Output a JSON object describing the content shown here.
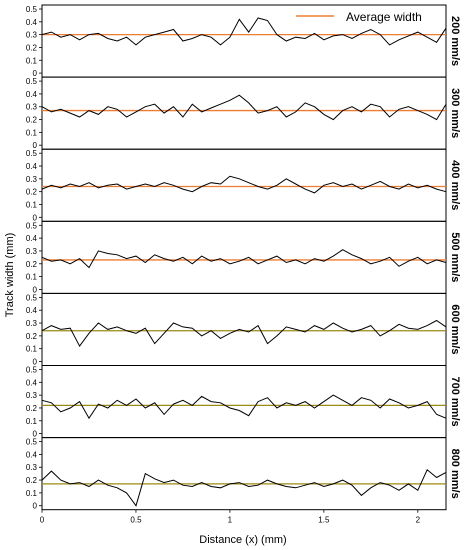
{
  "chart_data": {
    "type": "line",
    "xlabel": "Distance (x) (mm)",
    "ylabel": "Track width (mm)",
    "xlim": [
      0,
      2.15
    ],
    "ylim": [
      0,
      0.5
    ],
    "xticks": [
      "0",
      "0.5",
      "1",
      "1.5",
      "2"
    ],
    "xtick_values": [
      0,
      0.5,
      1,
      1.5,
      2
    ],
    "yticks": [
      "0",
      "0.1",
      "0.2",
      "0.3",
      "0.4",
      "0.5"
    ],
    "ytick_values": [
      0,
      0.1,
      0.2,
      0.3,
      0.4,
      0.5
    ],
    "legend": {
      "label": "Average width",
      "color": "#ed7d31",
      "position": "top-right"
    },
    "line_color": "#000000",
    "panels": [
      {
        "label": "200 mm/s",
        "average": 0.3,
        "average_color": "#ed7d31",
        "x": [
          0,
          0.05,
          0.1,
          0.15,
          0.2,
          0.25,
          0.3,
          0.35,
          0.4,
          0.45,
          0.5,
          0.55,
          0.6,
          0.65,
          0.7,
          0.75,
          0.8,
          0.85,
          0.9,
          0.95,
          1.0,
          1.05,
          1.1,
          1.15,
          1.2,
          1.25,
          1.3,
          1.35,
          1.4,
          1.45,
          1.5,
          1.55,
          1.6,
          1.65,
          1.7,
          1.75,
          1.8,
          1.85,
          1.9,
          1.95,
          2.0,
          2.05,
          2.1,
          2.15
        ],
        "y": [
          0.3,
          0.32,
          0.28,
          0.3,
          0.26,
          0.3,
          0.31,
          0.27,
          0.25,
          0.28,
          0.22,
          0.28,
          0.3,
          0.32,
          0.34,
          0.25,
          0.27,
          0.3,
          0.28,
          0.22,
          0.28,
          0.42,
          0.32,
          0.43,
          0.41,
          0.3,
          0.25,
          0.28,
          0.27,
          0.31,
          0.26,
          0.29,
          0.3,
          0.27,
          0.31,
          0.34,
          0.3,
          0.22,
          0.26,
          0.29,
          0.32,
          0.28,
          0.24,
          0.35
        ]
      },
      {
        "label": "300 mm/s",
        "average": 0.27,
        "average_color": "#ed7d31",
        "x": [
          0,
          0.05,
          0.1,
          0.15,
          0.2,
          0.25,
          0.3,
          0.35,
          0.4,
          0.45,
          0.5,
          0.55,
          0.6,
          0.65,
          0.7,
          0.75,
          0.8,
          0.85,
          0.9,
          0.95,
          1.0,
          1.05,
          1.1,
          1.15,
          1.2,
          1.25,
          1.3,
          1.35,
          1.4,
          1.45,
          1.5,
          1.55,
          1.6,
          1.65,
          1.7,
          1.75,
          1.8,
          1.85,
          1.9,
          1.95,
          2.0,
          2.05,
          2.1,
          2.15
        ],
        "y": [
          0.3,
          0.26,
          0.28,
          0.25,
          0.22,
          0.27,
          0.24,
          0.3,
          0.28,
          0.22,
          0.26,
          0.3,
          0.32,
          0.25,
          0.3,
          0.22,
          0.32,
          0.26,
          0.29,
          0.32,
          0.35,
          0.39,
          0.33,
          0.25,
          0.27,
          0.3,
          0.22,
          0.26,
          0.33,
          0.3,
          0.24,
          0.2,
          0.27,
          0.3,
          0.26,
          0.32,
          0.3,
          0.22,
          0.28,
          0.3,
          0.27,
          0.24,
          0.2,
          0.32
        ]
      },
      {
        "label": "400 mm/s",
        "average": 0.24,
        "average_color": "#ed7d31",
        "x": [
          0,
          0.05,
          0.1,
          0.15,
          0.2,
          0.25,
          0.3,
          0.35,
          0.4,
          0.45,
          0.5,
          0.55,
          0.6,
          0.65,
          0.7,
          0.75,
          0.8,
          0.85,
          0.9,
          0.95,
          1.0,
          1.05,
          1.1,
          1.15,
          1.2,
          1.25,
          1.3,
          1.35,
          1.4,
          1.45,
          1.5,
          1.55,
          1.6,
          1.65,
          1.7,
          1.75,
          1.8,
          1.85,
          1.9,
          1.95,
          2.0,
          2.05,
          2.1,
          2.15
        ],
        "y": [
          0.22,
          0.25,
          0.23,
          0.26,
          0.24,
          0.27,
          0.23,
          0.25,
          0.26,
          0.22,
          0.24,
          0.26,
          0.24,
          0.27,
          0.25,
          0.22,
          0.2,
          0.24,
          0.27,
          0.26,
          0.32,
          0.3,
          0.27,
          0.24,
          0.22,
          0.25,
          0.3,
          0.26,
          0.22,
          0.19,
          0.25,
          0.27,
          0.24,
          0.26,
          0.22,
          0.25,
          0.28,
          0.24,
          0.22,
          0.26,
          0.23,
          0.25,
          0.22,
          0.2
        ]
      },
      {
        "label": "500 mm/s",
        "average": 0.23,
        "average_color": "#ed7d31",
        "x": [
          0,
          0.05,
          0.1,
          0.15,
          0.2,
          0.25,
          0.3,
          0.35,
          0.4,
          0.45,
          0.5,
          0.55,
          0.6,
          0.65,
          0.7,
          0.75,
          0.8,
          0.85,
          0.9,
          0.95,
          1.0,
          1.05,
          1.1,
          1.15,
          1.2,
          1.25,
          1.3,
          1.35,
          1.4,
          1.45,
          1.5,
          1.55,
          1.6,
          1.65,
          1.7,
          1.75,
          1.8,
          1.85,
          1.9,
          1.95,
          2.0,
          2.05,
          2.1,
          2.15
        ],
        "y": [
          0.25,
          0.22,
          0.23,
          0.2,
          0.24,
          0.17,
          0.3,
          0.28,
          0.27,
          0.24,
          0.26,
          0.21,
          0.27,
          0.24,
          0.22,
          0.25,
          0.2,
          0.26,
          0.22,
          0.24,
          0.2,
          0.22,
          0.25,
          0.2,
          0.23,
          0.26,
          0.21,
          0.23,
          0.2,
          0.24,
          0.22,
          0.26,
          0.31,
          0.27,
          0.24,
          0.2,
          0.22,
          0.25,
          0.18,
          0.22,
          0.25,
          0.2,
          0.23,
          0.21
        ]
      },
      {
        "label": "600 mm/s",
        "average": 0.24,
        "average_color": "#9c8a14",
        "x": [
          0,
          0.05,
          0.1,
          0.15,
          0.2,
          0.25,
          0.3,
          0.35,
          0.4,
          0.45,
          0.5,
          0.55,
          0.6,
          0.65,
          0.7,
          0.75,
          0.8,
          0.85,
          0.9,
          0.95,
          1.0,
          1.05,
          1.1,
          1.15,
          1.2,
          1.25,
          1.3,
          1.35,
          1.4,
          1.45,
          1.5,
          1.55,
          1.6,
          1.65,
          1.7,
          1.75,
          1.8,
          1.85,
          1.9,
          1.95,
          2.0,
          2.05,
          2.1,
          2.15
        ],
        "y": [
          0.24,
          0.28,
          0.25,
          0.26,
          0.12,
          0.22,
          0.3,
          0.25,
          0.27,
          0.24,
          0.22,
          0.26,
          0.14,
          0.22,
          0.3,
          0.27,
          0.26,
          0.2,
          0.24,
          0.18,
          0.22,
          0.25,
          0.23,
          0.28,
          0.14,
          0.2,
          0.27,
          0.25,
          0.23,
          0.28,
          0.25,
          0.3,
          0.26,
          0.23,
          0.25,
          0.28,
          0.2,
          0.24,
          0.29,
          0.26,
          0.25,
          0.28,
          0.32,
          0.27
        ]
      },
      {
        "label": "700 mm/s",
        "average": 0.22,
        "average_color": "#9c8a14",
        "x": [
          0,
          0.05,
          0.1,
          0.15,
          0.2,
          0.25,
          0.3,
          0.35,
          0.4,
          0.45,
          0.5,
          0.55,
          0.6,
          0.65,
          0.7,
          0.75,
          0.8,
          0.85,
          0.9,
          0.95,
          1.0,
          1.05,
          1.1,
          1.15,
          1.2,
          1.25,
          1.3,
          1.35,
          1.4,
          1.45,
          1.5,
          1.55,
          1.6,
          1.65,
          1.7,
          1.75,
          1.8,
          1.85,
          1.9,
          1.95,
          2.0,
          2.05,
          2.1,
          2.15
        ],
        "y": [
          0.26,
          0.24,
          0.17,
          0.2,
          0.25,
          0.12,
          0.23,
          0.2,
          0.26,
          0.22,
          0.27,
          0.2,
          0.24,
          0.15,
          0.23,
          0.26,
          0.22,
          0.29,
          0.25,
          0.24,
          0.2,
          0.18,
          0.14,
          0.25,
          0.28,
          0.2,
          0.24,
          0.22,
          0.25,
          0.2,
          0.25,
          0.3,
          0.26,
          0.22,
          0.28,
          0.26,
          0.2,
          0.27,
          0.24,
          0.2,
          0.22,
          0.25,
          0.15,
          0.12
        ]
      },
      {
        "label": "800 mm/s",
        "average": 0.17,
        "average_color": "#9c8a14",
        "x": [
          0,
          0.05,
          0.1,
          0.15,
          0.2,
          0.25,
          0.3,
          0.35,
          0.4,
          0.45,
          0.5,
          0.55,
          0.6,
          0.65,
          0.7,
          0.75,
          0.8,
          0.85,
          0.9,
          0.95,
          1.0,
          1.05,
          1.1,
          1.15,
          1.2,
          1.25,
          1.3,
          1.35,
          1.4,
          1.45,
          1.5,
          1.55,
          1.6,
          1.65,
          1.7,
          1.75,
          1.8,
          1.85,
          1.9,
          1.95,
          2.0,
          2.05,
          2.1,
          2.15
        ],
        "y": [
          0.2,
          0.27,
          0.2,
          0.17,
          0.18,
          0.15,
          0.2,
          0.16,
          0.14,
          0.1,
          0.0,
          0.25,
          0.21,
          0.18,
          0.2,
          0.16,
          0.15,
          0.18,
          0.15,
          0.14,
          0.17,
          0.18,
          0.15,
          0.16,
          0.2,
          0.17,
          0.15,
          0.14,
          0.16,
          0.18,
          0.15,
          0.17,
          0.2,
          0.16,
          0.08,
          0.14,
          0.18,
          0.16,
          0.12,
          0.17,
          0.12,
          0.28,
          0.22,
          0.26
        ]
      }
    ]
  }
}
